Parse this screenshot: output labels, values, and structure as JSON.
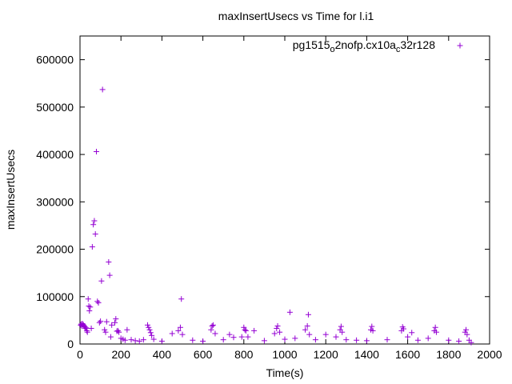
{
  "chart_data": {
    "type": "scatter",
    "title": "maxInsertUsecs vs Time for l.i1",
    "xlabel": "Time(s)",
    "ylabel": "maxInsertUsecs",
    "xlim": [
      0,
      2000
    ],
    "ylim": [
      0,
      650000
    ],
    "x_ticks": [
      0,
      200,
      400,
      600,
      800,
      1000,
      1200,
      1400,
      1600,
      1800,
      2000
    ],
    "y_ticks": [
      0,
      100000,
      200000,
      300000,
      400000,
      500000,
      600000
    ],
    "grid": false,
    "legend": {
      "placement": "top-right",
      "label_parts": [
        "pg1515",
        "o",
        "2nofp.cx10a",
        "c",
        "32r128"
      ]
    },
    "series": [
      {
        "name": "pg1515_o2nofp.cx10a_c32r128",
        "color": "#9400d3",
        "marker": "plus",
        "points": [
          [
            3,
            40000
          ],
          [
            6,
            42000
          ],
          [
            9,
            38000
          ],
          [
            12,
            43000
          ],
          [
            15,
            41000
          ],
          [
            18,
            39000
          ],
          [
            21,
            37000
          ],
          [
            24,
            36000
          ],
          [
            27,
            33000
          ],
          [
            30,
            34000
          ],
          [
            33,
            28000
          ],
          [
            36,
            25000
          ],
          [
            40,
            95000
          ],
          [
            43,
            80000
          ],
          [
            46,
            70000
          ],
          [
            50,
            78000
          ],
          [
            55,
            33000
          ],
          [
            60,
            205000
          ],
          [
            65,
            252000
          ],
          [
            70,
            260000
          ],
          [
            75,
            232000
          ],
          [
            80,
            406000
          ],
          [
            85,
            90000
          ],
          [
            90,
            87000
          ],
          [
            95,
            45000
          ],
          [
            100,
            48000
          ],
          [
            105,
            133000
          ],
          [
            110,
            537000
          ],
          [
            120,
            30000
          ],
          [
            125,
            25000
          ],
          [
            130,
            47000
          ],
          [
            140,
            173000
          ],
          [
            145,
            145000
          ],
          [
            150,
            15000
          ],
          [
            155,
            40000
          ],
          [
            170,
            45000
          ],
          [
            175,
            53000
          ],
          [
            180,
            27000
          ],
          [
            185,
            28000
          ],
          [
            190,
            25000
          ],
          [
            200,
            12000
          ],
          [
            210,
            10000
          ],
          [
            220,
            8000
          ],
          [
            230,
            30000
          ],
          [
            250,
            9000
          ],
          [
            270,
            7000
          ],
          [
            290,
            6000
          ],
          [
            310,
            9000
          ],
          [
            330,
            40000
          ],
          [
            335,
            35000
          ],
          [
            340,
            30000
          ],
          [
            345,
            24000
          ],
          [
            350,
            18000
          ],
          [
            360,
            10000
          ],
          [
            400,
            6000
          ],
          [
            450,
            22000
          ],
          [
            480,
            28000
          ],
          [
            490,
            35000
          ],
          [
            495,
            95000
          ],
          [
            500,
            20000
          ],
          [
            550,
            8000
          ],
          [
            600,
            6000
          ],
          [
            640,
            30000
          ],
          [
            645,
            38000
          ],
          [
            650,
            40000
          ],
          [
            660,
            22000
          ],
          [
            700,
            9000
          ],
          [
            730,
            20000
          ],
          [
            750,
            14000
          ],
          [
            790,
            15000
          ],
          [
            800,
            35000
          ],
          [
            805,
            30000
          ],
          [
            810,
            28000
          ],
          [
            820,
            15000
          ],
          [
            850,
            28000
          ],
          [
            900,
            7000
          ],
          [
            950,
            22000
          ],
          [
            960,
            33000
          ],
          [
            965,
            38000
          ],
          [
            975,
            25000
          ],
          [
            1000,
            10000
          ],
          [
            1025,
            67000
          ],
          [
            1050,
            12000
          ],
          [
            1100,
            30000
          ],
          [
            1110,
            38000
          ],
          [
            1115,
            62000
          ],
          [
            1120,
            20000
          ],
          [
            1150,
            9000
          ],
          [
            1200,
            20000
          ],
          [
            1250,
            15000
          ],
          [
            1270,
            30000
          ],
          [
            1275,
            37000
          ],
          [
            1280,
            25000
          ],
          [
            1300,
            9000
          ],
          [
            1350,
            8000
          ],
          [
            1400,
            7000
          ],
          [
            1420,
            30000
          ],
          [
            1425,
            37000
          ],
          [
            1430,
            28000
          ],
          [
            1500,
            9000
          ],
          [
            1570,
            28000
          ],
          [
            1575,
            36000
          ],
          [
            1580,
            32000
          ],
          [
            1600,
            15000
          ],
          [
            1620,
            24000
          ],
          [
            1650,
            8000
          ],
          [
            1700,
            12000
          ],
          [
            1730,
            28000
          ],
          [
            1735,
            35000
          ],
          [
            1740,
            25000
          ],
          [
            1800,
            8000
          ],
          [
            1850,
            6000
          ],
          [
            1880,
            25000
          ],
          [
            1885,
            30000
          ],
          [
            1890,
            20000
          ],
          [
            1900,
            8000
          ],
          [
            1910,
            3000
          ]
        ]
      }
    ]
  }
}
